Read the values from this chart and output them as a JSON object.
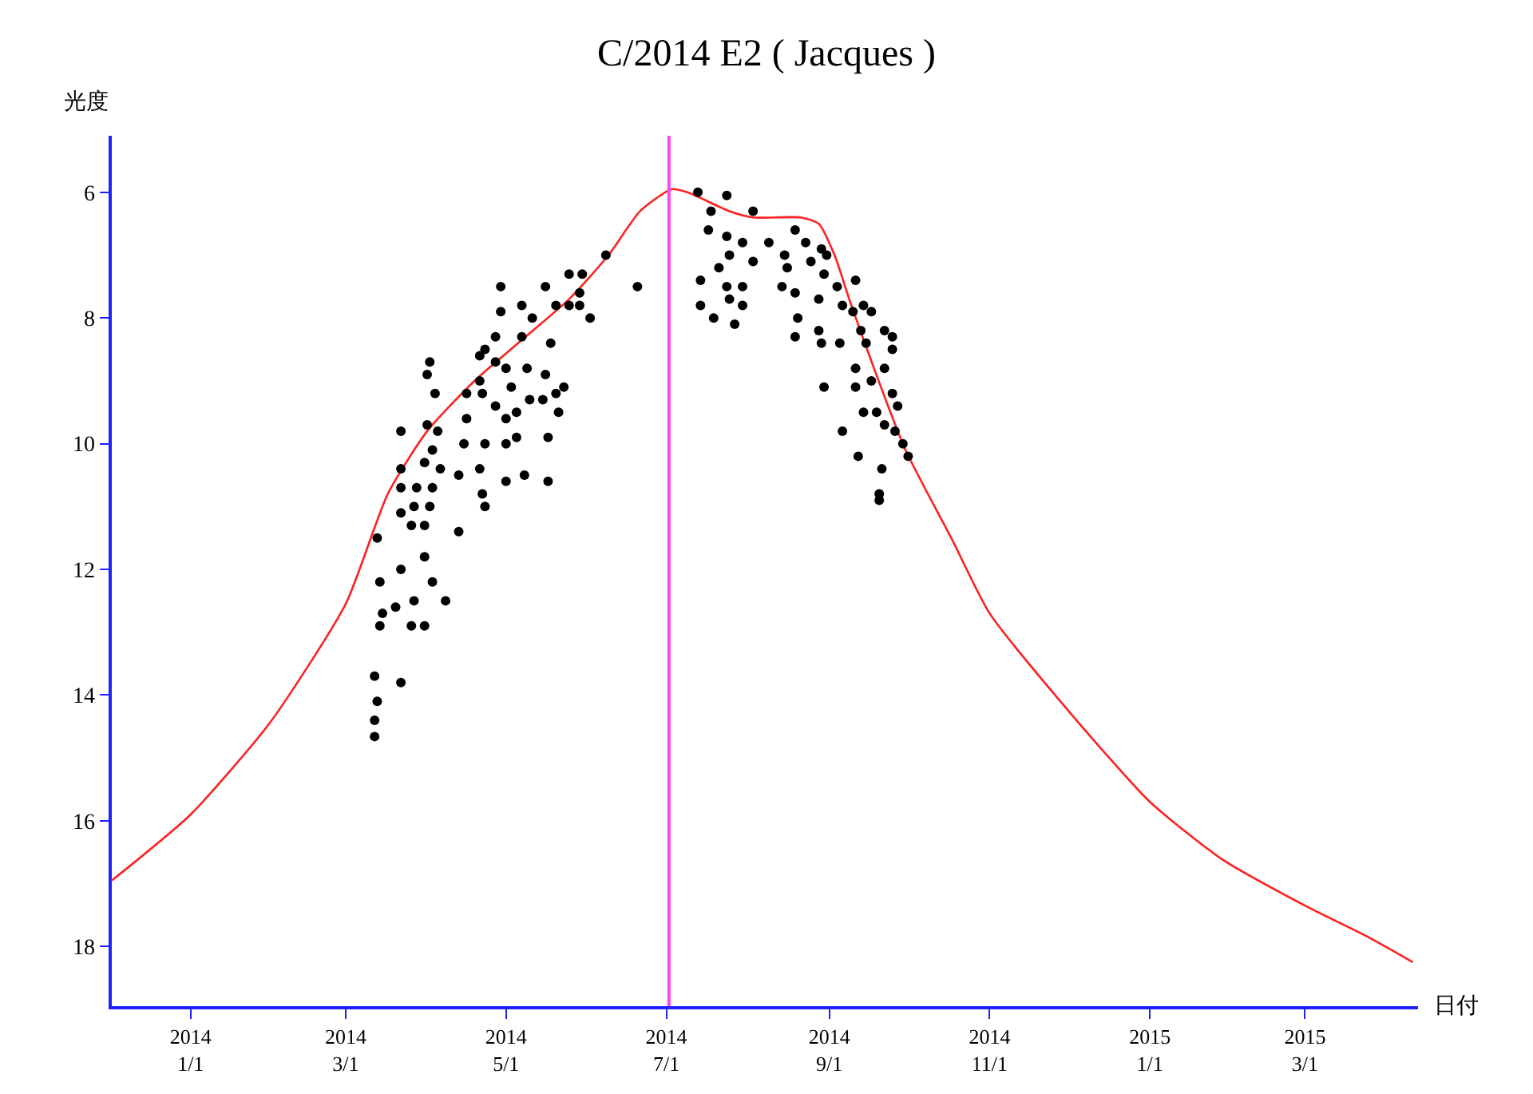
{
  "chart_data": {
    "type": "scatter",
    "title": "C/2014 E2 ( Jacques )",
    "xlabel": "日付",
    "ylabel": "光度",
    "xlim": [
      "2013-12-02",
      "2015-04-13"
    ],
    "ylim": [
      18.95,
      5.1
    ],
    "xticks": [
      {
        "value": "2014-01-01",
        "label": "2014\n1/1"
      },
      {
        "value": "2014-03-01",
        "label": "2014\n3/1"
      },
      {
        "value": "2014-05-01",
        "label": "2014\n5/1"
      },
      {
        "value": "2014-07-01",
        "label": "2014\n7/1"
      },
      {
        "value": "2014-09-01",
        "label": "2014\n9/1"
      },
      {
        "value": "2014-11-01",
        "label": "2014\n11/1"
      },
      {
        "value": "2015-01-01",
        "label": "2015\n1/1"
      },
      {
        "value": "2015-03-01",
        "label": "2015\n3/1"
      }
    ],
    "yticks": [
      6,
      8,
      10,
      12,
      14,
      16,
      18
    ],
    "grid": false,
    "ref_lines": [
      {
        "axis": "x",
        "value": "2014-07-02",
        "color": "#ff44ff"
      }
    ],
    "series": [
      {
        "type": "line",
        "color": "#ff2020",
        "line_style": "solid",
        "x": [
          "2013-12-02",
          "2014-01-01",
          "2014-01-31",
          "2014-03-01",
          "2014-03-17",
          "2014-04-01",
          "2014-04-19",
          "2014-05-07",
          "2014-05-25",
          "2014-06-09",
          "2014-06-21",
          "2014-07-03",
          "2014-07-09",
          "2014-07-25",
          "2014-08-03",
          "2014-08-21",
          "2014-08-28",
          "2014-09-03",
          "2014-09-09",
          "2014-09-18",
          "2014-09-30",
          "2014-10-18",
          "2014-11-01",
          "2014-12-02",
          "2015-01-01",
          "2015-01-28",
          "2015-03-01",
          "2015-03-25",
          "2015-04-11"
        ],
        "values": [
          16.95,
          15.9,
          14.45,
          12.55,
          10.8,
          9.8,
          9.0,
          8.35,
          7.7,
          7.0,
          6.3,
          5.95,
          6.0,
          6.3,
          6.4,
          6.4,
          6.5,
          7.0,
          7.75,
          8.8,
          10.1,
          11.55,
          12.7,
          14.3,
          15.7,
          16.6,
          17.35,
          17.85,
          18.25
        ]
      },
      {
        "color": "#000000",
        "marker": "circle",
        "x": [
          "2014-03-12",
          "2014-03-12",
          "2014-03-13",
          "2014-03-12",
          "2014-03-22",
          "2014-03-14",
          "2014-03-15",
          "2014-03-20",
          "2014-03-26",
          "2014-03-31",
          "2014-03-27",
          "2014-04-08",
          "2014-03-14",
          "2014-03-22",
          "2014-04-03",
          "2014-03-31",
          "2014-03-13",
          "2014-04-13",
          "2014-03-22",
          "2014-03-26",
          "2014-03-31",
          "2014-03-22",
          "2014-03-28",
          "2014-04-03",
          "2014-03-27",
          "2014-04-02",
          "2014-03-22",
          "2014-03-31",
          "2014-04-06",
          "2014-04-13",
          "2014-04-22",
          "2014-04-23",
          "2014-04-21",
          "2014-05-01",
          "2014-05-08",
          "2014-05-17",
          "2014-03-22",
          "2014-04-03",
          "2014-04-05",
          "2014-04-01",
          "2014-04-15",
          "2014-04-23",
          "2014-05-01",
          "2014-05-05",
          "2014-05-17",
          "2014-04-16",
          "2014-04-27",
          "2014-05-01",
          "2014-05-05",
          "2014-05-10",
          "2014-05-15",
          "2014-05-20",
          "2014-05-21",
          "2014-05-23",
          "2014-04-16",
          "2014-04-22",
          "2014-04-04",
          "2014-04-01",
          "2014-04-02",
          "2014-04-21",
          "2014-05-03",
          "2014-05-16",
          "2014-05-09",
          "2014-05-01",
          "2014-04-27",
          "2014-04-21",
          "2014-04-23",
          "2014-04-27",
          "2014-05-07",
          "2014-05-18",
          "2014-04-29",
          "2014-04-29",
          "2014-05-07",
          "2014-05-11",
          "2014-05-16",
          "2014-05-20",
          "2014-05-25",
          "2014-05-29",
          "2014-06-02",
          "2014-05-25",
          "2014-05-30",
          "2014-05-29",
          "2014-06-08",
          "2014-06-20",
          "2014-07-13",
          "2014-07-24",
          "2014-07-18",
          "2014-08-03",
          "2014-07-17",
          "2014-07-24",
          "2014-07-30",
          "2014-08-09",
          "2014-07-25",
          "2014-08-03",
          "2014-07-21",
          "2014-08-15",
          "2014-08-19",
          "2014-08-23",
          "2014-08-29",
          "2014-08-25",
          "2014-08-31",
          "2014-08-16",
          "2014-07-14",
          "2014-07-24",
          "2014-07-30",
          "2014-08-14",
          "2014-08-19",
          "2014-07-25",
          "2014-07-14",
          "2014-07-30",
          "2014-07-19",
          "2014-07-27",
          "2014-08-28",
          "2014-08-30",
          "2014-09-04",
          "2014-08-20",
          "2014-08-19",
          "2014-08-28",
          "2014-08-29",
          "2014-09-05",
          "2014-09-06",
          "2014-09-11",
          "2014-09-10",
          "2014-09-14",
          "2014-09-17",
          "2014-09-13",
          "2014-09-22",
          "2014-09-25",
          "2014-09-15",
          "2014-09-25",
          "2014-09-11",
          "2014-09-22",
          "2014-09-11",
          "2014-09-17",
          "2014-09-25",
          "2014-09-27",
          "2014-09-14",
          "2014-09-19",
          "2014-09-22",
          "2014-09-06",
          "2014-09-26",
          "2014-09-29",
          "2014-10-01",
          "2014-09-12",
          "2014-09-21",
          "2014-08-30",
          "2014-09-20",
          "2014-09-20"
        ],
        "values": [
          14.66,
          14.4,
          14.1,
          13.7,
          13.8,
          12.9,
          12.7,
          12.6,
          12.9,
          12.9,
          12.5,
          12.5,
          12.2,
          12.0,
          12.2,
          11.8,
          11.5,
          11.4,
          11.1,
          11.3,
          11.3,
          10.7,
          10.7,
          10.7,
          11.0,
          11.0,
          10.4,
          10.3,
          10.4,
          10.5,
          10.8,
          11.0,
          10.4,
          10.6,
          10.5,
          10.6,
          9.8,
          10.1,
          9.8,
          9.7,
          10.0,
          10.0,
          10.0,
          9.9,
          9.9,
          9.6,
          9.4,
          9.6,
          9.5,
          9.3,
          9.3,
          9.2,
          9.5,
          9.1,
          9.2,
          9.2,
          9.2,
          8.9,
          8.7,
          9.0,
          9.1,
          8.9,
          8.8,
          8.8,
          8.7,
          8.6,
          8.5,
          8.3,
          8.3,
          8.4,
          7.9,
          7.5,
          7.8,
          8.0,
          7.5,
          7.8,
          7.8,
          7.8,
          8.0,
          7.3,
          7.3,
          7.6,
          7.0,
          7.5,
          6.0,
          6.05,
          6.3,
          6.3,
          6.6,
          6.7,
          6.8,
          6.8,
          7.0,
          7.1,
          7.2,
          7.0,
          6.6,
          6.8,
          6.9,
          7.1,
          7.0,
          7.2,
          7.4,
          7.5,
          7.5,
          7.5,
          7.6,
          7.7,
          7.8,
          7.8,
          8.0,
          8.1,
          7.7,
          7.3,
          7.5,
          8.0,
          8.3,
          8.2,
          8.4,
          8.4,
          7.8,
          7.4,
          7.9,
          7.8,
          7.9,
          8.2,
          8.2,
          8.3,
          8.4,
          8.5,
          8.8,
          8.8,
          9.1,
          9.0,
          9.2,
          9.4,
          9.5,
          9.5,
          9.7,
          9.8,
          9.8,
          10.0,
          10.2,
          10.2,
          10.4,
          9.1,
          10.8,
          10.9
        ]
      }
    ]
  }
}
